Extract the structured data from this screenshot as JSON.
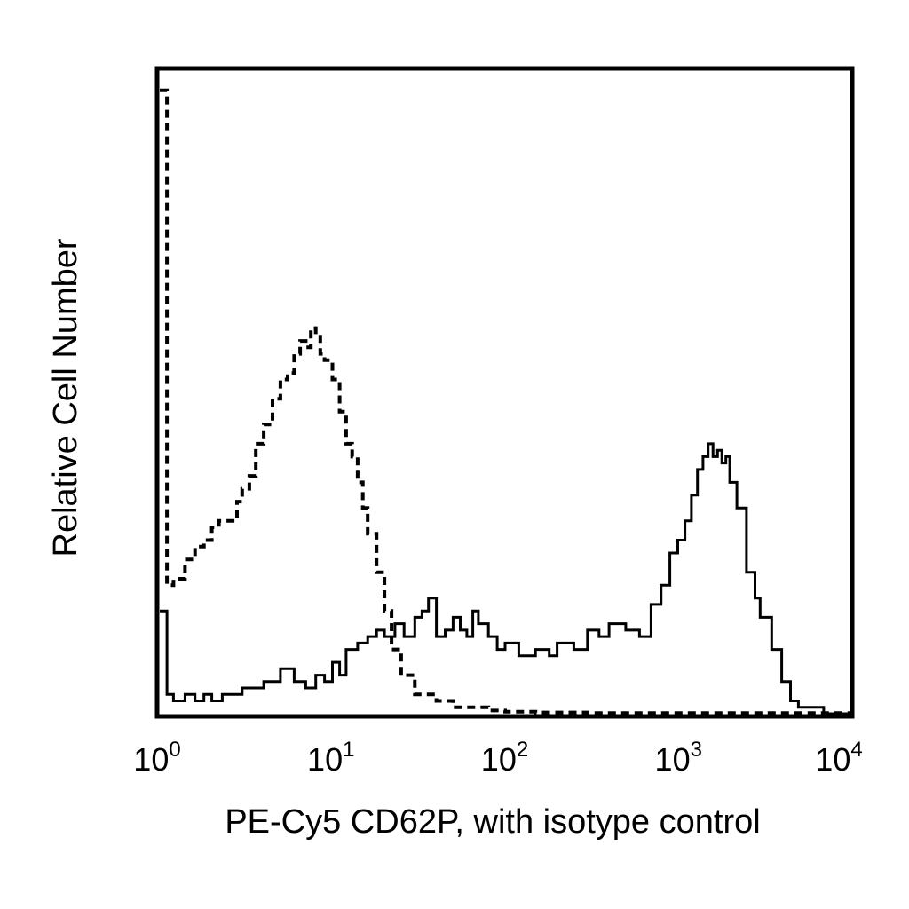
{
  "chart_data": {
    "type": "line",
    "xlabel": "PE-Cy5 CD62P, with isotype control",
    "ylabel": "Relative Cell Number",
    "x_scale": "log",
    "xlim": [
      1,
      10000
    ],
    "ylim": [
      0,
      100
    ],
    "grid": false,
    "legend": "none",
    "x_ticks": [
      {
        "base": "10",
        "exp": "0",
        "value": 1
      },
      {
        "base": "10",
        "exp": "1",
        "value": 10
      },
      {
        "base": "10",
        "exp": "2",
        "value": 100
      },
      {
        "base": "10",
        "exp": "3",
        "value": 1000
      },
      {
        "base": "10",
        "exp": "4",
        "value": 10000
      }
    ],
    "series": [
      {
        "style": "solid",
        "color": "#000000",
        "x": [
          1.0,
          1.1,
          1.2,
          1.4,
          1.6,
          1.8,
          2.0,
          2.3,
          2.6,
          3.0,
          3.5,
          4.0,
          4.5,
          5.0,
          6.0,
          7.0,
          8.0,
          9.0,
          10.0,
          11.0,
          12.0,
          14.0,
          16.0,
          18.0,
          20.0,
          23.0,
          26.0,
          30.0,
          33.0,
          36.0,
          40.0,
          45.0,
          50.0,
          55.0,
          60.0,
          65.0,
          70.0,
          80.0,
          90.0,
          100.0,
          120.0,
          150.0,
          180.0,
          200.0,
          250.0,
          300.0,
          350.0,
          400.0,
          500.0,
          600.0,
          700.0,
          800.0,
          900.0,
          1000.0,
          1100.0,
          1200.0,
          1300.0,
          1400.0,
          1500.0,
          1600.0,
          1700.0,
          1800.0,
          1900.0,
          2000.0,
          2200.0,
          2500.0,
          2800.0,
          3000.0,
          3500.0,
          4000.0,
          4500.0,
          5000.0,
          6000.0,
          7000.0,
          8000.0,
          10000.0
        ],
        "y": [
          16,
          3,
          2,
          3,
          2,
          3,
          2,
          3,
          3,
          4,
          4,
          5,
          5,
          7,
          5,
          4,
          6,
          5,
          8,
          6,
          10,
          11,
          12,
          13,
          12,
          14,
          12,
          15,
          16,
          18,
          12,
          13,
          15,
          13,
          12,
          16,
          14,
          12,
          10,
          11,
          9,
          10,
          9,
          11,
          10,
          13,
          12,
          14,
          13,
          12,
          17,
          20,
          25,
          27,
          30,
          34,
          38,
          40,
          42,
          40,
          41,
          39,
          40,
          36,
          32,
          22,
          18,
          15,
          10,
          5,
          2,
          1,
          1,
          0,
          0,
          0
        ]
      },
      {
        "style": "dashed",
        "color": "#000000",
        "x": [
          1.0,
          1.1,
          1.2,
          1.4,
          1.6,
          1.8,
          2.0,
          2.2,
          2.5,
          2.8,
          3.0,
          3.3,
          3.6,
          4.0,
          4.5,
          5.0,
          5.5,
          6.0,
          6.5,
          7.0,
          7.5,
          8.0,
          8.5,
          9.0,
          10.0,
          11.0,
          12.0,
          13.0,
          14.0,
          15.0,
          16.0,
          18.0,
          20.0,
          22.0,
          25.0,
          30.0,
          40.0,
          50.0,
          60.0,
          80.0,
          100.0,
          150.0,
          200.0,
          300.0,
          500.0,
          1000.0,
          2000.0,
          5000.0,
          10000.0
        ],
        "y": [
          97,
          20,
          21,
          24,
          26,
          27,
          29,
          30,
          30,
          33,
          35,
          37,
          42,
          45,
          49,
          52,
          53,
          56,
          58,
          57,
          60,
          59,
          56,
          55,
          52,
          47,
          42,
          40,
          36,
          32,
          28,
          22,
          16,
          10,
          6,
          3,
          2,
          1,
          1,
          0.5,
          0.3,
          0.2,
          0.2,
          0.1,
          0.1,
          0.1,
          0.1,
          0.1,
          0.1
        ]
      }
    ]
  }
}
